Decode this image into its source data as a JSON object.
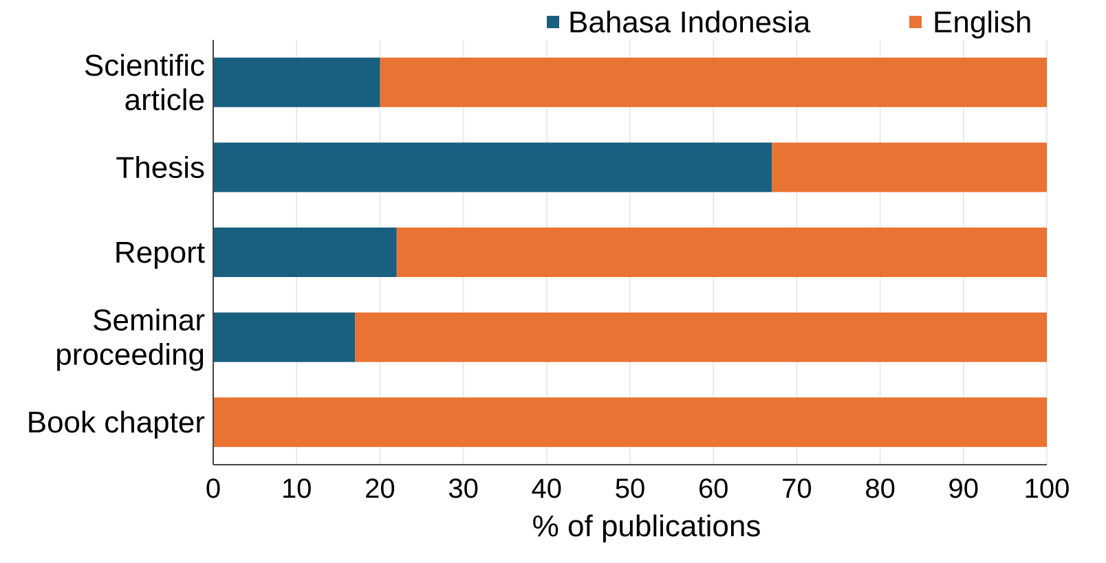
{
  "chart_data": {
    "type": "bar",
    "orientation": "horizontal",
    "stacked": true,
    "categories": [
      [
        "Scientific",
        "article"
      ],
      [
        "Thesis"
      ],
      [
        "Report"
      ],
      [
        "Seminar",
        "proceeding"
      ],
      [
        "Book chapter"
      ]
    ],
    "series": [
      {
        "name": "Bahasa Indonesia",
        "color": "#185f80",
        "values": [
          20,
          67,
          22,
          17,
          0
        ]
      },
      {
        "name": "English",
        "color": "#e97333",
        "values": [
          80,
          33,
          78,
          83,
          100
        ]
      }
    ],
    "xlabel": "% of publications",
    "ylabel": "",
    "xlim": [
      0,
      100
    ],
    "xticks": [
      "0",
      "10",
      "20",
      "30",
      "40",
      "50",
      "60",
      "70",
      "80",
      "90",
      "100"
    ],
    "grid": "vertical",
    "legend_position": "top-right"
  }
}
